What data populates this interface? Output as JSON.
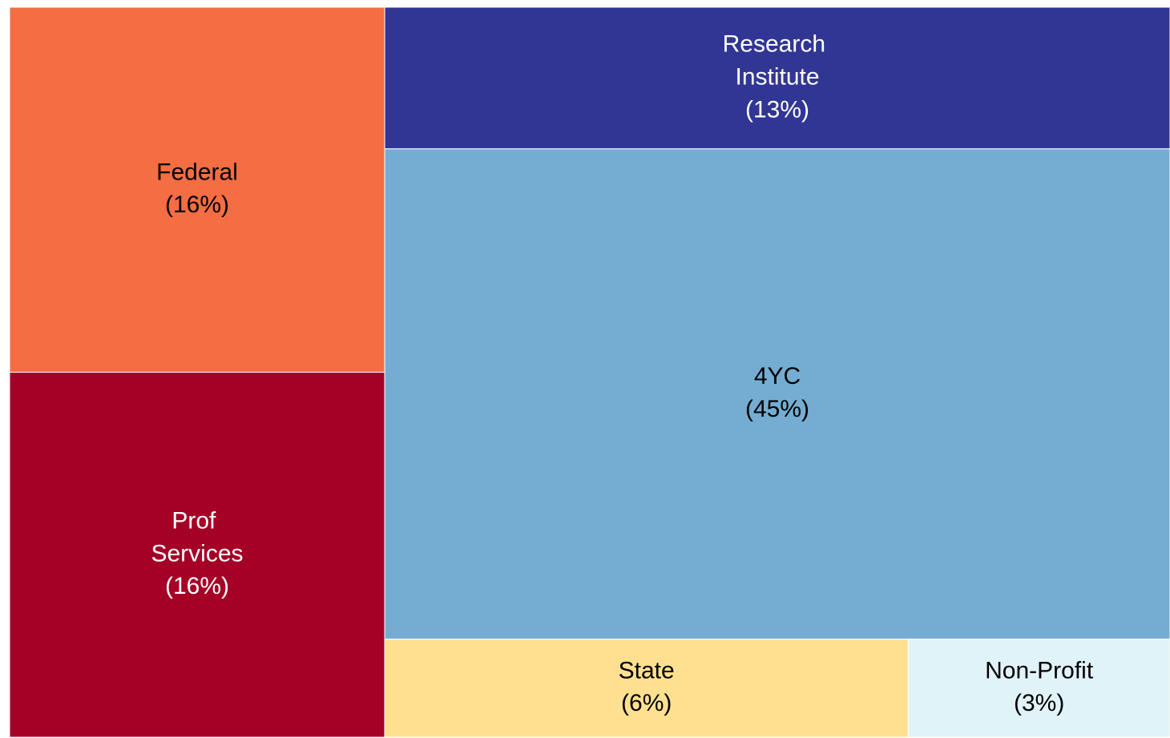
{
  "chart_data": {
    "type": "treemap",
    "categories": [
      "Federal",
      "Prof Services",
      "Research Institute",
      "4YC",
      "State",
      "Non-Profit"
    ],
    "values": [
      16,
      16,
      13,
      45,
      6,
      3
    ],
    "value_labels": [
      "(16%)",
      "(16%)",
      "(13%)",
      "(45%)",
      "(6%)",
      "(3%)"
    ],
    "colors": [
      "#f46d43",
      "#a50026",
      "#313695",
      "#74add1",
      "#fee090",
      "#e0f3f8"
    ]
  }
}
